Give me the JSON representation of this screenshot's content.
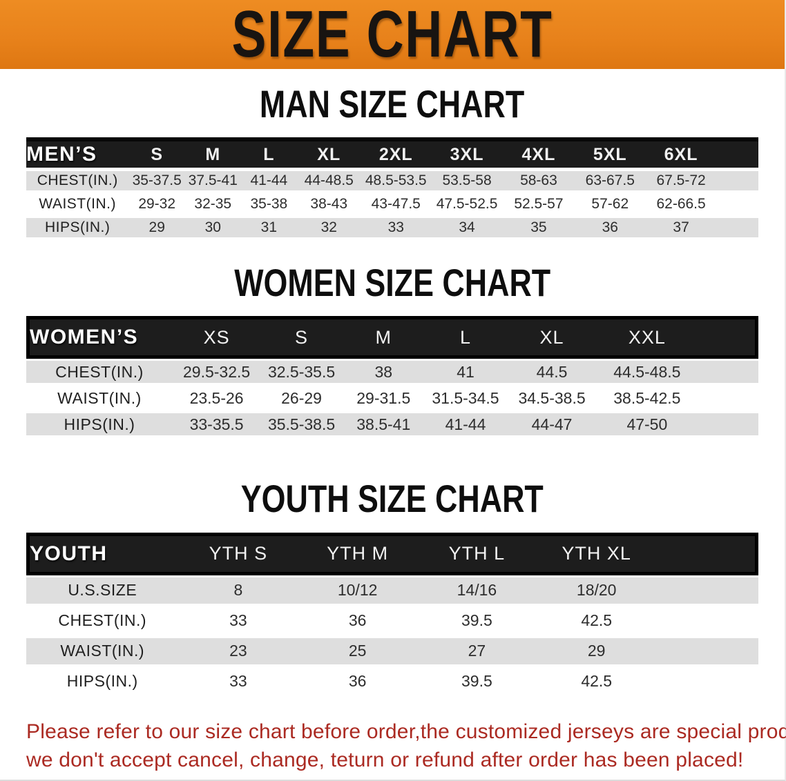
{
  "banner": {
    "title": "SIZE CHART"
  },
  "colors": {
    "banner_orange": "#E8821B",
    "header_band_black": "#1C1C1C",
    "row_stripe_gray": "#DEDEDE",
    "disclaimer_red": "#AB2A22"
  },
  "tables": [
    {
      "id": "mens",
      "section_title": "MAN SIZE CHART",
      "corner_label": "MEN’S",
      "columns": [
        "S",
        "M",
        "L",
        "XL",
        "2XL",
        "3XL",
        "4XL",
        "5XL",
        "6XL"
      ],
      "rows": [
        {
          "label": "CHEST(IN.)",
          "values": [
            "35-37.5",
            "37.5-41",
            "41-44",
            "44-48.5",
            "48.5-53.5",
            "53.5-58",
            "58-63",
            "63-67.5",
            "67.5-72"
          ]
        },
        {
          "label": "WAIST(IN.)",
          "values": [
            "29-32",
            "32-35",
            "35-38",
            "38-43",
            "43-47.5",
            "47.5-52.5",
            "52.5-57",
            "57-62",
            "62-66.5"
          ]
        },
        {
          "label": "HIPS(IN.)",
          "values": [
            "29",
            "30",
            "31",
            "32",
            "33",
            "34",
            "35",
            "36",
            "37"
          ]
        }
      ]
    },
    {
      "id": "womens",
      "section_title": "WOMEN SIZE CHART",
      "corner_label": "WOMEN’S",
      "columns": [
        "XS",
        "S",
        "M",
        "L",
        "XL",
        "XXL"
      ],
      "rows": [
        {
          "label": "CHEST(IN.)",
          "values": [
            "29.5-32.5",
            "32.5-35.5",
            "38",
            "41",
            "44.5",
            "44.5-48.5"
          ]
        },
        {
          "label": "WAIST(IN.)",
          "values": [
            "23.5-26",
            "26-29",
            "29-31.5",
            "31.5-34.5",
            "34.5-38.5",
            "38.5-42.5"
          ]
        },
        {
          "label": "HIPS(IN.)",
          "values": [
            "33-35.5",
            "35.5-38.5",
            "38.5-41",
            "41-44",
            "44-47",
            "47-50"
          ]
        }
      ]
    },
    {
      "id": "youth",
      "section_title": "YOUTH SIZE CHART",
      "corner_label": "YOUTH",
      "columns": [
        "YTH S",
        "YTH M",
        "YTH L",
        "YTH XL"
      ],
      "rows": [
        {
          "label": "U.S.SIZE",
          "values": [
            "8",
            "10/12",
            "14/16",
            "18/20"
          ]
        },
        {
          "label": "CHEST(IN.)",
          "values": [
            "33",
            "36",
            "39.5",
            "42.5"
          ]
        },
        {
          "label": "WAIST(IN.)",
          "values": [
            "23",
            "25",
            "27",
            "29"
          ]
        },
        {
          "label": "HIPS(IN.)",
          "values": [
            "33",
            "36",
            "39.5",
            "42.5"
          ]
        }
      ]
    }
  ],
  "disclaimer": {
    "line1": "Please refer to our size chart before order,the customized jerseys are special products,",
    "line2": "we don't accept cancel, change, teturn or refund after order has been placed!"
  }
}
